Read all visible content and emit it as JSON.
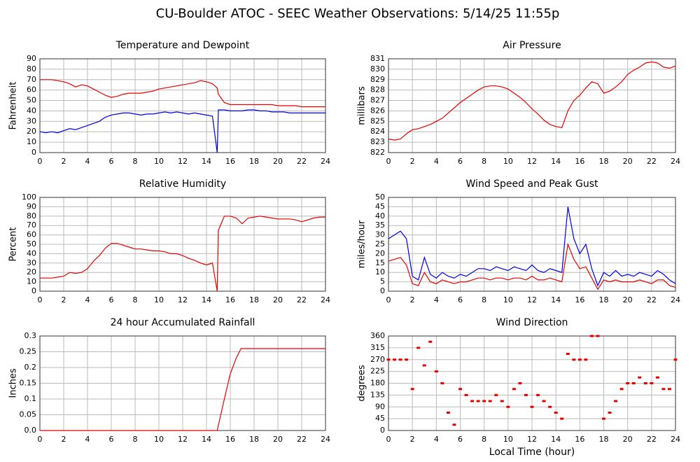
{
  "title": "CU-Boulder ATOC - SEEC Weather Observations: 5/14/25 11:55p",
  "chart_data": [
    {
      "type": "line",
      "title": "Temperature and Dewpoint",
      "ylabel": "Fahrenheit",
      "x": [
        0,
        0.5,
        1,
        1.5,
        2,
        2.5,
        3,
        3.5,
        4,
        4.5,
        5,
        5.5,
        6,
        6.5,
        7,
        7.5,
        8,
        8.5,
        9,
        9.5,
        10,
        10.5,
        11,
        11.5,
        12,
        12.5,
        13,
        13.5,
        14,
        14.5,
        14.9,
        15,
        15.5,
        16,
        16.5,
        17,
        17.5,
        18,
        18.5,
        19,
        19.5,
        20,
        20.5,
        21,
        21.5,
        22,
        22.5,
        23,
        23.5,
        24
      ],
      "series": [
        {
          "color": "#e60000",
          "values": [
            70,
            70,
            70,
            69,
            68,
            66,
            63,
            65,
            64,
            61,
            58,
            55,
            53,
            54,
            56,
            57,
            57,
            57,
            58,
            59,
            61,
            62,
            63,
            64,
            65,
            66,
            67,
            69,
            68,
            66,
            62,
            56,
            48,
            46,
            46,
            46,
            46,
            46,
            46,
            46,
            46,
            45,
            45,
            45,
            45,
            44,
            44,
            44,
            44,
            44
          ]
        },
        {
          "color": "#0000e6",
          "values": [
            20,
            19,
            20,
            19,
            21,
            23,
            22,
            24,
            26,
            28,
            30,
            34,
            36,
            37,
            38,
            38,
            37,
            36,
            37,
            37,
            38,
            39,
            38,
            39,
            38,
            37,
            38,
            37,
            36,
            35,
            0,
            41,
            41,
            40,
            40,
            40,
            41,
            41,
            40,
            40,
            39,
            39,
            39,
            38,
            38,
            38,
            38,
            38,
            38,
            38
          ]
        }
      ],
      "xlim": [
        0,
        24
      ],
      "xticks": [
        0,
        2,
        4,
        6,
        8,
        10,
        12,
        14,
        16,
        18,
        20,
        22,
        24
      ],
      "ylim": [
        0,
        90
      ],
      "yticks": [
        0,
        10,
        20,
        30,
        40,
        50,
        60,
        70,
        80,
        90
      ],
      "grid": true
    },
    {
      "type": "line",
      "title": "Air Pressure",
      "ylabel": "millibars",
      "x": [
        0,
        0.5,
        1,
        1.5,
        2,
        2.5,
        3,
        3.5,
        4,
        4.5,
        5,
        5.5,
        6,
        6.5,
        7,
        7.5,
        8,
        8.5,
        9,
        9.5,
        10,
        10.5,
        11,
        11.5,
        12,
        12.5,
        13,
        13.5,
        14,
        14.5,
        15,
        15.5,
        16,
        16.5,
        17,
        17.5,
        18,
        18.5,
        19,
        19.5,
        20,
        20.5,
        21,
        21.5,
        22,
        22.5,
        23,
        23.5,
        24
      ],
      "series": [
        {
          "color": "#e60000",
          "values": [
            823.3,
            823.2,
            823.3,
            823.8,
            824.2,
            824.3,
            824.5,
            824.7,
            825,
            825.3,
            825.8,
            826.3,
            826.8,
            827.2,
            827.6,
            828,
            828.3,
            828.4,
            828.4,
            828.3,
            828.1,
            827.7,
            827.3,
            826.8,
            826.2,
            825.7,
            825.1,
            824.7,
            824.5,
            824.4,
            826,
            827,
            827.5,
            828.2,
            828.8,
            828.6,
            827.7,
            827.9,
            828.3,
            828.8,
            829.5,
            829.9,
            830.2,
            830.6,
            830.7,
            830.6,
            830.2,
            830.1,
            830.3
          ]
        }
      ],
      "xlim": [
        0,
        24
      ],
      "xticks": [
        0,
        2,
        4,
        6,
        8,
        10,
        12,
        14,
        16,
        18,
        20,
        22,
        24
      ],
      "ylim": [
        822,
        831
      ],
      "yticks": [
        822,
        823,
        824,
        825,
        826,
        827,
        828,
        829,
        830,
        831
      ],
      "grid": true
    },
    {
      "type": "line",
      "title": "Relative Humidity",
      "ylabel": "Percent",
      "x": [
        0,
        0.5,
        1,
        1.5,
        2,
        2.5,
        3,
        3.5,
        4,
        4.5,
        5,
        5.5,
        6,
        6.5,
        7,
        7.5,
        8,
        8.5,
        9,
        9.5,
        10,
        10.5,
        11,
        11.5,
        12,
        12.5,
        13,
        13.5,
        14,
        14.5,
        14.9,
        15,
        15.5,
        16,
        16.5,
        17,
        17.5,
        18,
        18.5,
        19,
        19.5,
        20,
        20.5,
        21,
        21.5,
        22,
        22.5,
        23,
        23.5,
        24
      ],
      "series": [
        {
          "color": "#e60000",
          "values": [
            14,
            14,
            14,
            15,
            16,
            20,
            19,
            20,
            24,
            32,
            38,
            46,
            51,
            51,
            49,
            47,
            45,
            45,
            44,
            43,
            43,
            42,
            40,
            40,
            38,
            35,
            33,
            30,
            28,
            30,
            0,
            65,
            80,
            80,
            78,
            72,
            78,
            79,
            80,
            79,
            78,
            77,
            77,
            77,
            76,
            74,
            76,
            78,
            79,
            79
          ]
        }
      ],
      "xlim": [
        0,
        24
      ],
      "xticks": [
        0,
        2,
        4,
        6,
        8,
        10,
        12,
        14,
        16,
        18,
        20,
        22,
        24
      ],
      "ylim": [
        0,
        100
      ],
      "yticks": [
        0,
        10,
        20,
        30,
        40,
        50,
        60,
        70,
        80,
        90,
        100
      ],
      "grid": true
    },
    {
      "type": "line",
      "title": "Wind Speed and Peak Gust",
      "ylabel": "miles/hour",
      "x": [
        0,
        0.5,
        1,
        1.5,
        2,
        2.5,
        3,
        3.5,
        4,
        4.5,
        5,
        5.5,
        6,
        6.5,
        7,
        7.5,
        8,
        8.5,
        9,
        9.5,
        10,
        10.5,
        11,
        11.5,
        12,
        12.5,
        13,
        13.5,
        14,
        14.5,
        15,
        15.5,
        16,
        16.5,
        17,
        17.5,
        18,
        18.5,
        19,
        19.5,
        20,
        20.5,
        21,
        21.5,
        22,
        22.5,
        23,
        23.5,
        24
      ],
      "series": [
        {
          "color": "#0000e6",
          "values": [
            28,
            30,
            32,
            28,
            8,
            6,
            18,
            9,
            7,
            10,
            8,
            7,
            9,
            8,
            10,
            12,
            12,
            11,
            13,
            12,
            11,
            13,
            12,
            11,
            14,
            11,
            10,
            12,
            11,
            10,
            45,
            28,
            20,
            25,
            12,
            3,
            10,
            8,
            11,
            8,
            9,
            8,
            10,
            9,
            8,
            11,
            9,
            6,
            4
          ]
        },
        {
          "color": "#e60000",
          "values": [
            16,
            17,
            18,
            14,
            4,
            3,
            10,
            5,
            4,
            6,
            5,
            4,
            5,
            5,
            6,
            7,
            7,
            6,
            7,
            7,
            6,
            7,
            7,
            6,
            8,
            6,
            6,
            7,
            6,
            5,
            25,
            17,
            12,
            13,
            7,
            1,
            6,
            5,
            6,
            5,
            5,
            5,
            6,
            5,
            4,
            6,
            6,
            3,
            2
          ]
        }
      ],
      "xlim": [
        0,
        24
      ],
      "xticks": [
        0,
        2,
        4,
        6,
        8,
        10,
        12,
        14,
        16,
        18,
        20,
        22,
        24
      ],
      "ylim": [
        0,
        50
      ],
      "yticks": [
        0,
        5,
        10,
        15,
        20,
        25,
        30,
        35,
        40,
        45,
        50
      ],
      "grid": true
    },
    {
      "type": "line",
      "title": "24 hour Accumulated Rainfall",
      "ylabel": "Inches",
      "x": [
        0,
        14.9,
        15.5,
        16,
        16.5,
        16.9,
        24
      ],
      "series": [
        {
          "color": "#e60000",
          "values": [
            0,
            0,
            0.1,
            0.18,
            0.23,
            0.26,
            0.26
          ]
        }
      ],
      "xlim": [
        0,
        24
      ],
      "xticks": [
        0,
        2,
        4,
        6,
        8,
        10,
        12,
        14,
        16,
        18,
        20,
        22,
        24
      ],
      "ylim": [
        0,
        0.3
      ],
      "yticks": [
        {
          "value": 0,
          "label": "0.0"
        },
        0.05,
        0.1,
        0.15,
        0.2,
        0.25,
        0.3
      ],
      "grid": true
    },
    {
      "type": "scatter",
      "title": "Wind Direction",
      "ylabel": "degrees",
      "xlabel": "Local Time (hour)",
      "x": [
        0,
        0.5,
        1,
        1.5,
        2,
        2.5,
        3,
        3.5,
        4,
        4.5,
        5,
        5.5,
        6,
        6.5,
        7,
        7.5,
        8,
        8.5,
        9,
        9.5,
        10,
        10.5,
        11,
        11.5,
        12,
        12.5,
        13,
        13.5,
        14,
        14.5,
        15,
        15.5,
        16,
        16.5,
        17,
        17.5,
        18,
        18.5,
        19,
        19.5,
        20,
        20.5,
        21,
        21.5,
        22,
        22.5,
        23,
        23.5,
        24
      ],
      "series": [
        {
          "color": "#e60000",
          "values": [
            270,
            270,
            270,
            270,
            158,
            315,
            248,
            338,
            225,
            180,
            68,
            22,
            158,
            135,
            112,
            112,
            112,
            112,
            135,
            112,
            90,
            158,
            180,
            135,
            90,
            135,
            112,
            90,
            68,
            45,
            292,
            270,
            270,
            270,
            360,
            360,
            45,
            68,
            112,
            158,
            180,
            180,
            202,
            180,
            180,
            202,
            158,
            158,
            270
          ]
        }
      ],
      "xlim": [
        0,
        24
      ],
      "xticks": [
        0,
        2,
        4,
        6,
        8,
        10,
        12,
        14,
        16,
        18,
        20,
        22,
        24
      ],
      "ylim": [
        0,
        360
      ],
      "yticks": [
        0,
        45,
        90,
        135,
        180,
        225,
        270,
        315,
        360
      ],
      "grid": true
    }
  ]
}
